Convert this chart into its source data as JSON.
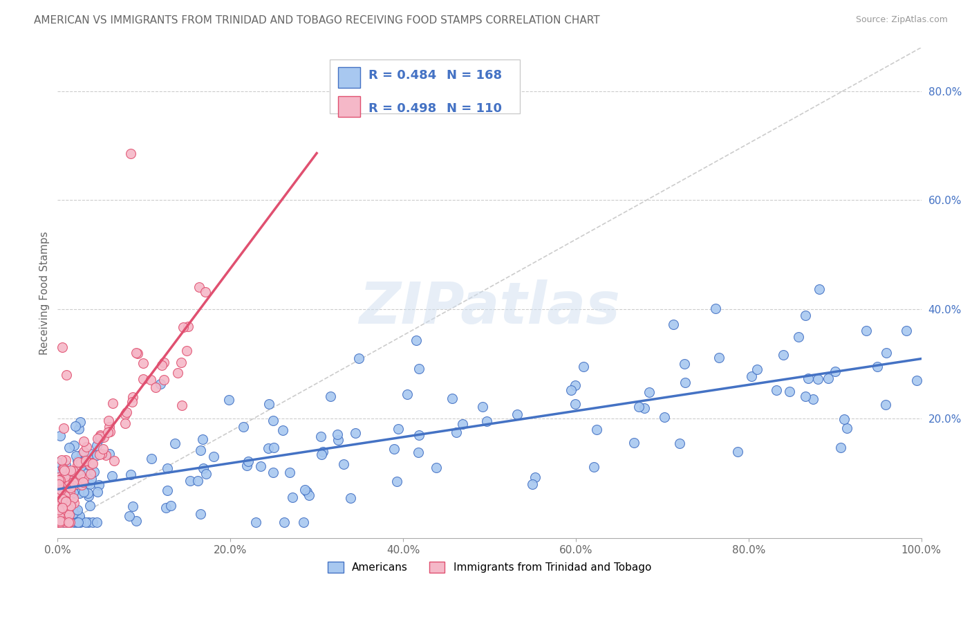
{
  "title": "AMERICAN VS IMMIGRANTS FROM TRINIDAD AND TOBAGO RECEIVING FOOD STAMPS CORRELATION CHART",
  "source": "Source: ZipAtlas.com",
  "ylabel": "Receiving Food Stamps",
  "watermark": "ZIPatlas",
  "legend_r_americans": "0.484",
  "legend_n_americans": "168",
  "legend_r_immigrants": "0.498",
  "legend_n_immigrants": "110",
  "americans_color": "#a8c8f0",
  "immigrants_color": "#f5b8c8",
  "americans_line_color": "#4472c4",
  "immigrants_line_color": "#e05070",
  "xlim": [
    0,
    1.0
  ],
  "ylim": [
    -0.02,
    0.88
  ],
  "xtick_labels": [
    "0.0%",
    "20.0%",
    "40.0%",
    "60.0%",
    "80.0%",
    "100.0%"
  ],
  "xtick_positions": [
    0.0,
    0.2,
    0.4,
    0.6,
    0.8,
    1.0
  ],
  "ytick_labels": [
    "20.0%",
    "40.0%",
    "60.0%",
    "80.0%"
  ],
  "ytick_positions": [
    0.2,
    0.4,
    0.6,
    0.8
  ],
  "background_color": "#ffffff",
  "grid_color": "#cccccc",
  "title_fontsize": 11,
  "legend_fontsize": 13,
  "axis_label_fontsize": 11,
  "tick_fontsize": 11
}
